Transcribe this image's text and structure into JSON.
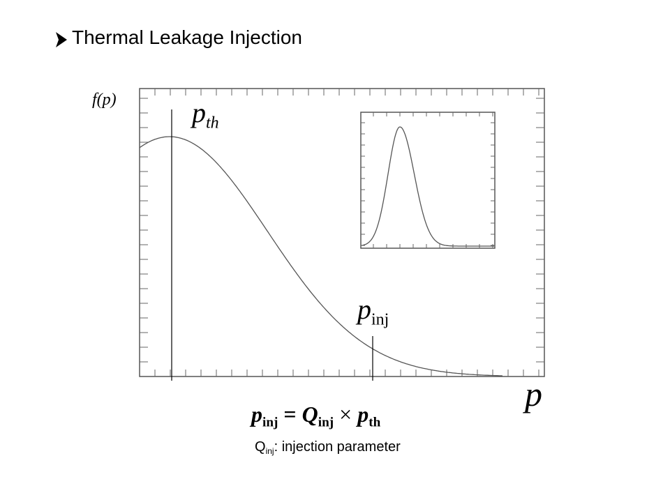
{
  "slide": {
    "title": "Thermal Leakage Injection",
    "plot": {
      "y_label": "f(p)",
      "x_label": "p",
      "p_th_label": {
        "base": "p",
        "sub": "th"
      },
      "p_inj_label": {
        "base": "p",
        "sub": "inj"
      }
    },
    "formula": {
      "lhs": {
        "base": "p",
        "sub": "inj"
      },
      "equals": "=",
      "q": {
        "base": "Q",
        "sub": "inj"
      },
      "times": "×",
      "pth": {
        "base": "p",
        "sub": "th"
      }
    },
    "caption": {
      "base": "Q",
      "sub": "inj",
      "text": ": injection parameter"
    }
  }
}
